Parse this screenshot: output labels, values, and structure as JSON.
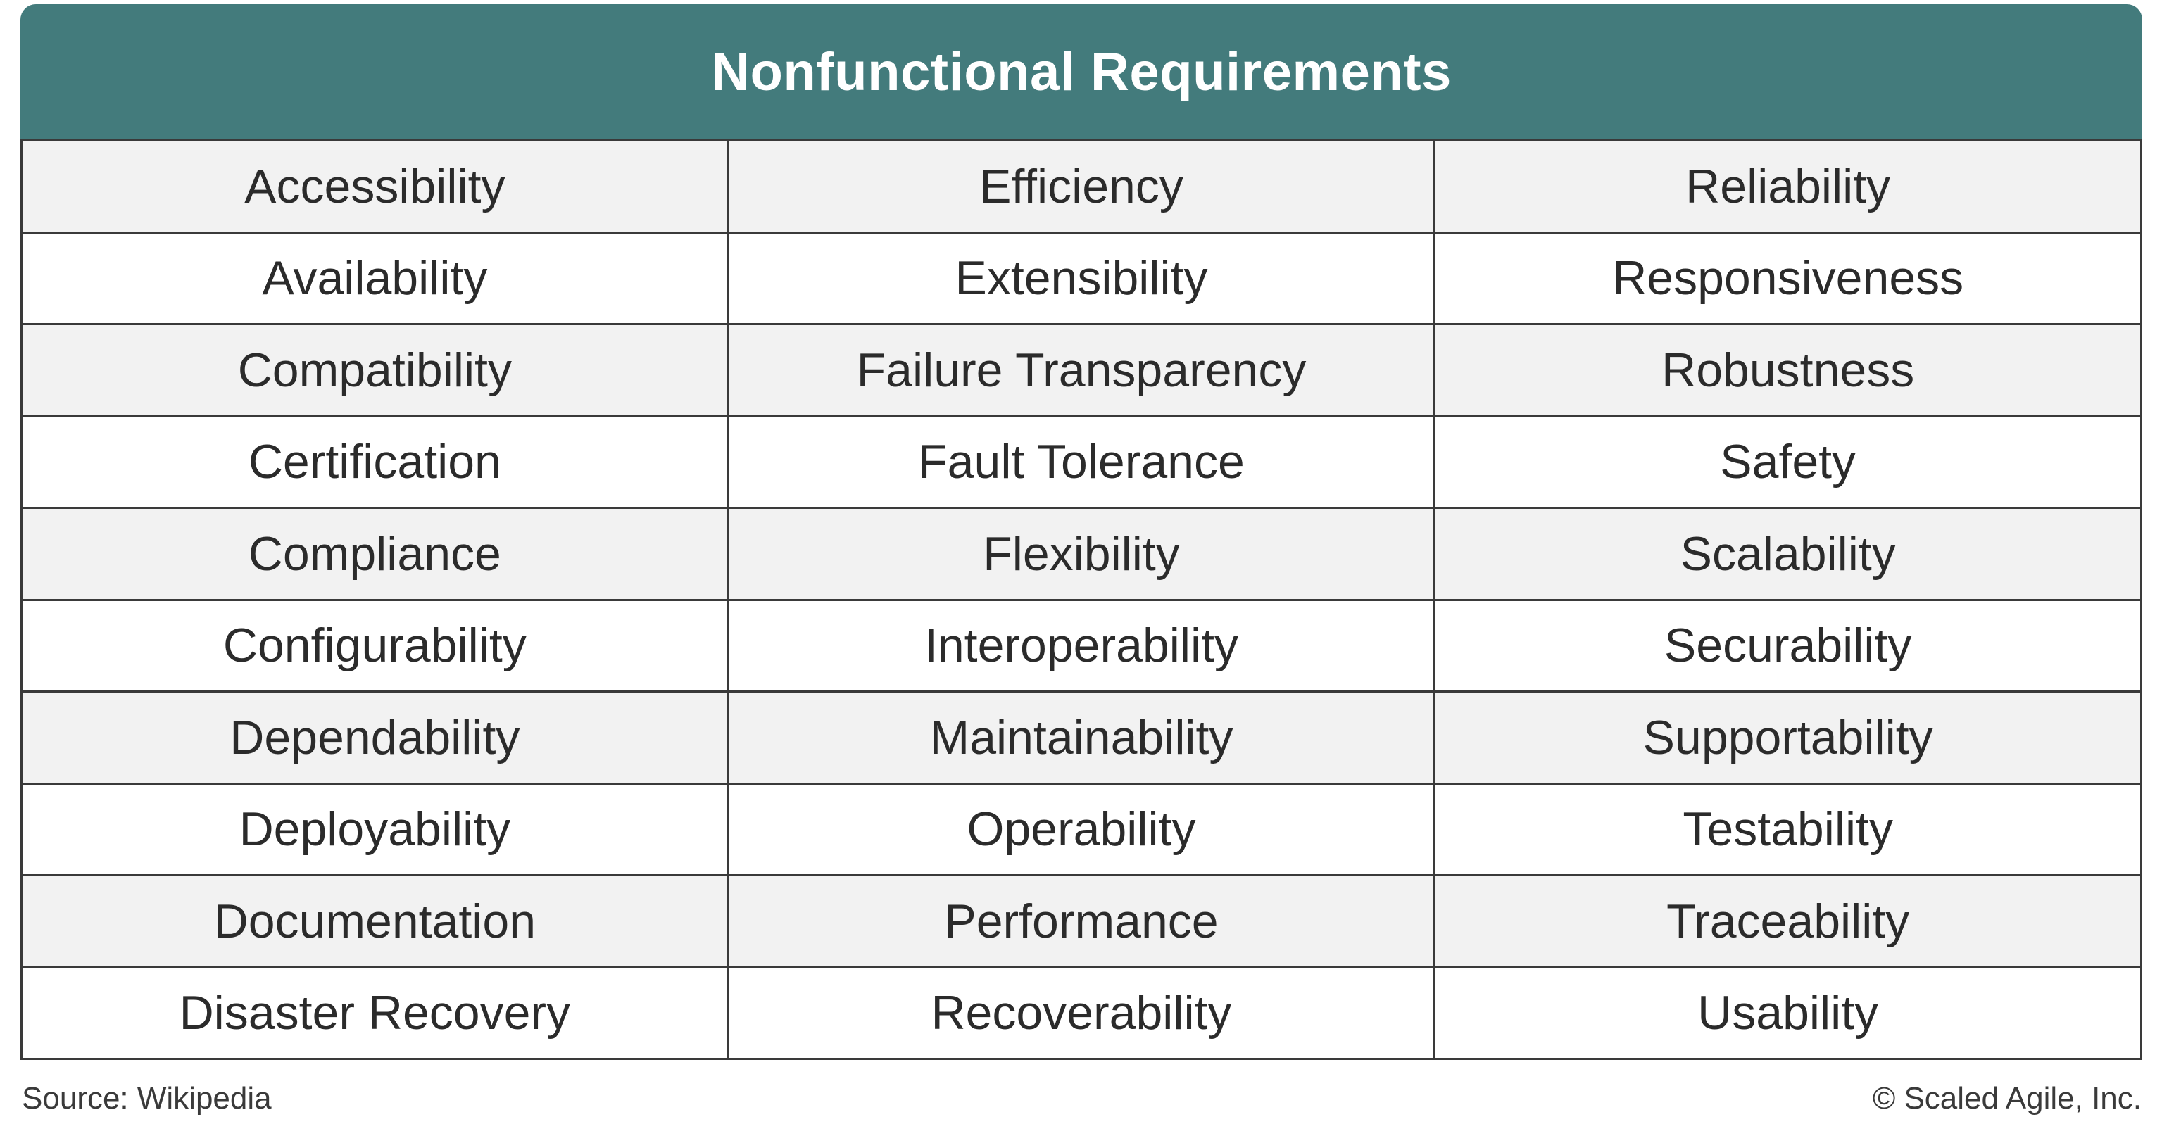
{
  "header": {
    "title": "Nonfunctional Requirements"
  },
  "rows": [
    [
      "Accessibility",
      "Efficiency",
      "Reliability"
    ],
    [
      "Availability",
      "Extensibility",
      "Responsiveness"
    ],
    [
      "Compatibility",
      "Failure Transparency",
      "Robustness"
    ],
    [
      "Certification",
      "Fault Tolerance",
      "Safety"
    ],
    [
      "Compliance",
      "Flexibility",
      "Scalability"
    ],
    [
      "Configurability",
      "Interoperability",
      "Securability"
    ],
    [
      "Dependability",
      "Maintainability",
      "Supportability"
    ],
    [
      "Deployability",
      "Operability",
      "Testability"
    ],
    [
      "Documentation",
      "Performance",
      "Traceability"
    ],
    [
      "Disaster Recovery",
      "Recoverability",
      "Usability"
    ]
  ],
  "footer": {
    "source": "Source: Wikipedia",
    "copyright": "© Scaled Agile, Inc."
  },
  "colors": {
    "header_bg": "#437b7c",
    "header_text": "#ffffff",
    "row_shaded": "#f2f2f2",
    "row_plain": "#ffffff",
    "border": "#3a3a3a"
  }
}
